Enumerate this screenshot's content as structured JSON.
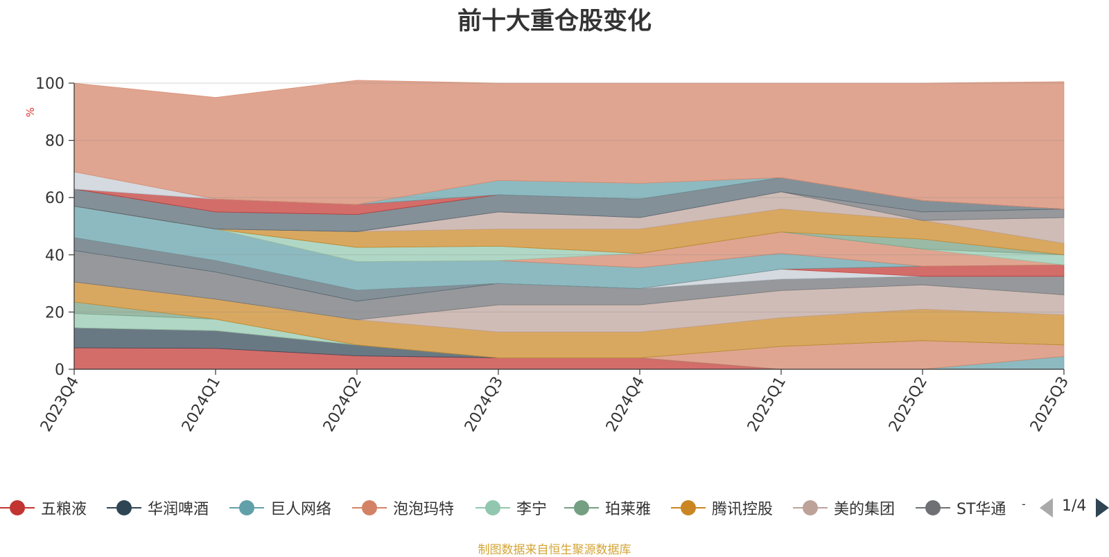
{
  "chart_data": {
    "type": "area",
    "stacked": true,
    "title": "前十大重仓股变化",
    "ylabel": "%",
    "ylim": [
      0,
      100
    ],
    "yticks": [
      0,
      20,
      40,
      60,
      80,
      100
    ],
    "grid": true,
    "categories": [
      "2023Q4",
      "2024Q1",
      "2024Q2",
      "2024Q3",
      "2024Q4",
      "2025Q1",
      "2025Q2",
      "2025Q3"
    ],
    "series": [
      {
        "name": "五粮液",
        "color": "#c23531",
        "values": [
          7.5,
          7.3,
          4.7,
          4.0,
          4.0,
          0,
          0,
          0
        ]
      },
      {
        "name": "华润啤酒",
        "color": "#2f4554",
        "values": [
          7.0,
          6.2,
          3.8,
          0,
          0,
          0,
          0,
          0
        ]
      },
      {
        "name": "巨人网络",
        "color": "#61a0a8",
        "values": [
          0,
          0,
          0,
          0,
          0,
          0,
          0,
          4.5
        ]
      },
      {
        "name": "泡泡玛特",
        "color": "#d48265",
        "values": [
          0,
          0,
          0,
          0,
          0,
          8.0,
          10.0,
          4.0
        ]
      },
      {
        "name": "李宁",
        "color": "#91c7ae",
        "values": [
          5.0,
          4.0,
          0,
          0,
          0,
          0,
          0,
          0
        ]
      },
      {
        "name": "珀莱雅",
        "color": "#749f83",
        "values": [
          4.0,
          0,
          0,
          0,
          0,
          0,
          0,
          0
        ]
      },
      {
        "name": "腾讯控股",
        "color": "#ca8622",
        "values": [
          7.0,
          7.0,
          8.8,
          9.0,
          9.0,
          10.0,
          11.0,
          10.5
        ]
      },
      {
        "name": "美的集团",
        "color": "#bda29a",
        "values": [
          0,
          0,
          0,
          9.5,
          9.5,
          9.5,
          8.5,
          7.0
        ]
      },
      {
        "name": "ST华通",
        "color": "#6e7074",
        "values": [
          11.0,
          9.5,
          6.5,
          7.5,
          5.7,
          4.0,
          3.0,
          6.5
        ]
      },
      {
        "name": "",
        "color": "#546570",
        "values": [
          4.5,
          4.0,
          3.8,
          0,
          0,
          0,
          0,
          0
        ]
      },
      {
        "name": "",
        "color": "#c4ccd3",
        "values": [
          0,
          0,
          0,
          0,
          0,
          3.5,
          0,
          0
        ]
      },
      {
        "name": "",
        "color": "#c23531",
        "values": [
          0,
          0,
          0,
          0,
          0,
          0,
          3.5,
          4.0
        ]
      },
      {
        "name": "",
        "color": "#61a0a8",
        "values": [
          11.0,
          11.0,
          10.0,
          8.0,
          7.3,
          5.5,
          0,
          0
        ]
      },
      {
        "name": "",
        "color": "#d48265",
        "values": [
          0,
          0,
          0,
          0,
          5.0,
          7.5,
          6.0,
          0
        ]
      },
      {
        "name": "",
        "color": "#91c7ae",
        "values": [
          0,
          0,
          5.0,
          5.0,
          0,
          0,
          0,
          3.5
        ]
      },
      {
        "name": "",
        "color": "#749f83",
        "values": [
          0,
          0,
          0,
          0,
          0,
          0,
          3.5,
          0
        ]
      },
      {
        "name": "",
        "color": "#ca8622",
        "values": [
          0,
          0,
          5.5,
          6.0,
          8.5,
          8.0,
          6.5,
          4.0
        ]
      },
      {
        "name": "",
        "color": "#bda29a",
        "values": [
          0,
          0,
          0,
          6.0,
          4.0,
          6.0,
          0,
          9.0
        ]
      },
      {
        "name": "",
        "color": "#6e7074",
        "values": [
          0,
          0,
          0,
          0,
          0,
          0,
          3.0,
          3.0
        ]
      },
      {
        "name": "",
        "color": "#546570",
        "values": [
          6.0,
          6.0,
          6.0,
          6.0,
          6.5,
          5.0,
          4.0,
          0
        ]
      },
      {
        "name": "",
        "color": "#c23531",
        "values": [
          0,
          4.5,
          3.5,
          0,
          0,
          0,
          0,
          0
        ]
      },
      {
        "name": "",
        "color": "#61a0a8",
        "values": [
          0,
          0,
          0,
          5.0,
          5.5,
          0,
          0,
          0
        ]
      },
      {
        "name": "",
        "color": "#c4ccd3",
        "values": [
          6.0,
          0,
          0,
          0,
          0,
          0,
          0,
          0
        ]
      },
      {
        "name": "",
        "color": "#d48265",
        "values": [
          31.0,
          35.5,
          43.4,
          34.0,
          35.0,
          33.0,
          41.0,
          44.5
        ]
      }
    ]
  },
  "legend": {
    "more": "-",
    "page": "1/4"
  },
  "source_note": "制图数据来自恒生聚源数据库"
}
